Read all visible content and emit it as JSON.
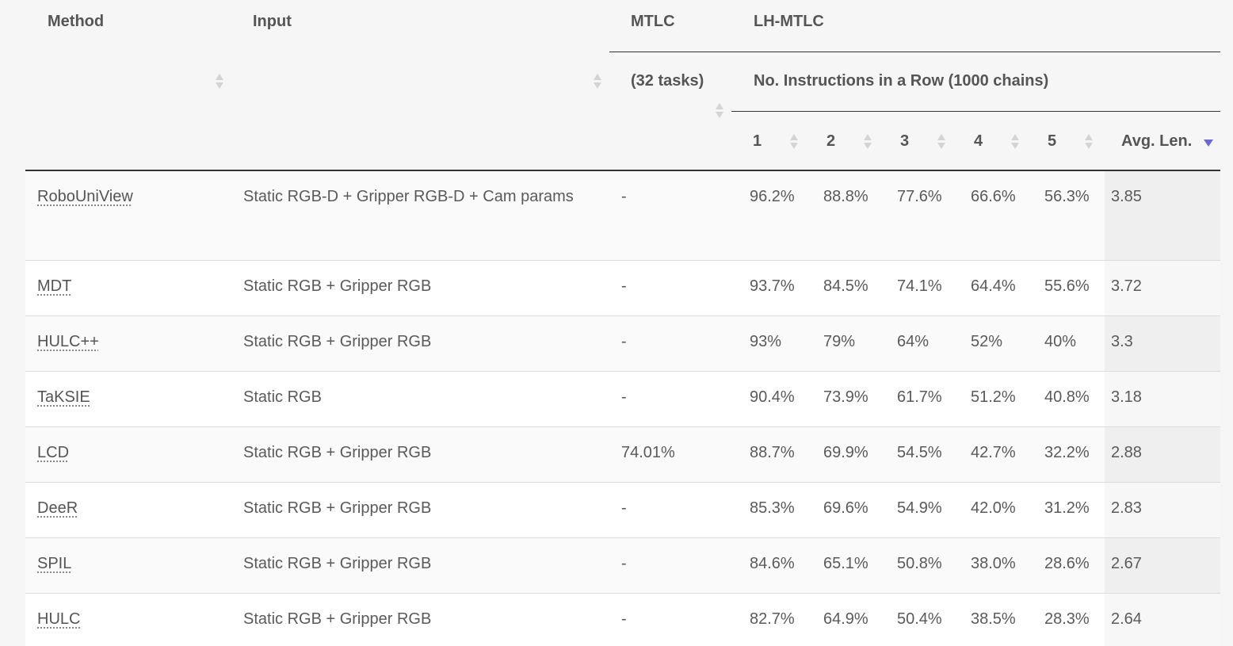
{
  "header": {
    "method": "Method",
    "input": "Input",
    "mtlc": "MTLC",
    "lh_mtlc": "LH-MTLC",
    "mtlc_sub": "(32 tasks)",
    "lh_sub": "No. Instructions in a Row (1000 chains)",
    "cols": [
      "1",
      "2",
      "3",
      "4",
      "5"
    ],
    "avg": "Avg. Len."
  },
  "rows": [
    {
      "method": "RoboUniView",
      "input": "Static RGB-D + Gripper RGB-D + Cam params",
      "mtlc": "-",
      "v1": "96.2%",
      "v2": "88.8%",
      "v3": "77.6%",
      "v4": "66.6%",
      "v5": "56.3%",
      "avg": "3.85"
    },
    {
      "method": "MDT",
      "input": "Static RGB + Gripper RGB",
      "mtlc": "-",
      "v1": "93.7%",
      "v2": "84.5%",
      "v3": "74.1%",
      "v4": "64.4%",
      "v5": "55.6%",
      "avg": "3.72"
    },
    {
      "method": "HULC++",
      "input": "Static RGB + Gripper RGB",
      "mtlc": "-",
      "v1": "93%",
      "v2": "79%",
      "v3": "64%",
      "v4": "52%",
      "v5": "40%",
      "avg": "3.3"
    },
    {
      "method": "TaKSIE",
      "input": "Static RGB",
      "mtlc": "-",
      "v1": "90.4%",
      "v2": "73.9%",
      "v3": "61.7%",
      "v4": "51.2%",
      "v5": "40.8%",
      "avg": "3.18"
    },
    {
      "method": "LCD",
      "input": "Static RGB + Gripper RGB",
      "mtlc": "74.01%",
      "v1": "88.7%",
      "v2": "69.9%",
      "v3": "54.5%",
      "v4": "42.7%",
      "v5": "32.2%",
      "avg": "2.88"
    },
    {
      "method": "DeeR",
      "input": "Static RGB + Gripper RGB",
      "mtlc": "-",
      "v1": "85.3%",
      "v2": "69.6%",
      "v3": "54.9%",
      "v4": "42.0%",
      "v5": "31.2%",
      "avg": "2.83"
    },
    {
      "method": "SPIL",
      "input": "Static RGB + Gripper RGB",
      "mtlc": "-",
      "v1": "84.6%",
      "v2": "65.1%",
      "v3": "50.8%",
      "v4": "38.0%",
      "v5": "28.6%",
      "avg": "2.67"
    },
    {
      "method": "HULC",
      "input": "Static RGB + Gripper RGB",
      "mtlc": "-",
      "v1": "82.7%",
      "v2": "64.9%",
      "v3": "50.4%",
      "v4": "38.5%",
      "v5": "28.3%",
      "avg": "2.64"
    }
  ]
}
